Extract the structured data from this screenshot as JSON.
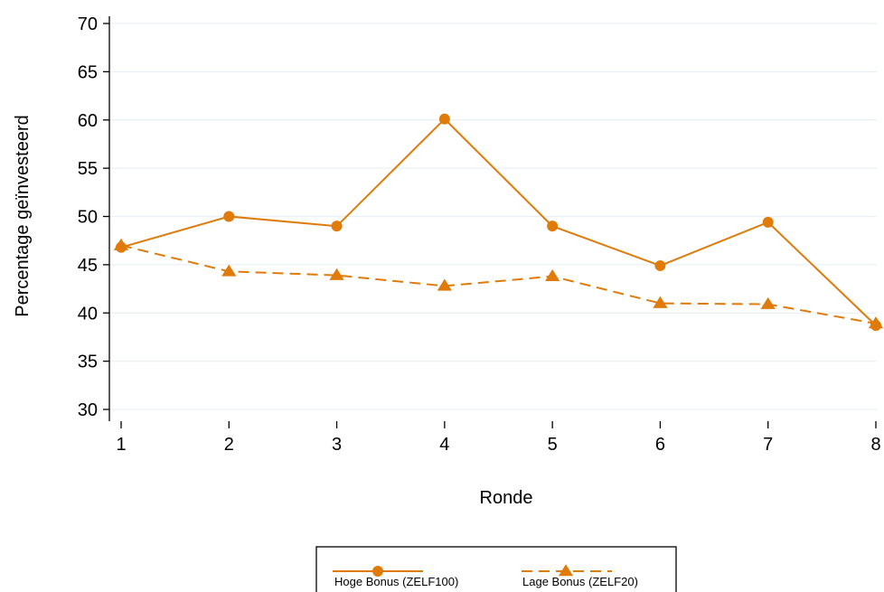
{
  "chart_data": {
    "type": "line",
    "title": "",
    "xlabel": "Ronde",
    "ylabel": "Percentage geïnvesteerd",
    "x": [
      1,
      2,
      3,
      4,
      5,
      6,
      7,
      8
    ],
    "xticks": [
      "1",
      "2",
      "3",
      "4",
      "5",
      "6",
      "7",
      "8"
    ],
    "yticks": [
      "30",
      "35",
      "40",
      "45",
      "50",
      "55",
      "60",
      "65",
      "70"
    ],
    "ytick_values": [
      30,
      35,
      40,
      45,
      50,
      55,
      60,
      65,
      70
    ],
    "xlim": [
      1,
      8
    ],
    "ylim": [
      30,
      70
    ],
    "grid": "horizontal",
    "legend_placement": "bottom-center",
    "series": [
      {
        "name": "Hoge Bonus (ZELF100)",
        "values": [
          46.8,
          50.0,
          49.0,
          60.1,
          49.0,
          44.9,
          49.4,
          38.7
        ],
        "marker": "circle",
        "line_style": "solid",
        "color": "#e07b0b"
      },
      {
        "name": "Lage Bonus (ZELF20)",
        "values": [
          47.0,
          44.3,
          43.9,
          42.8,
          43.8,
          41.0,
          40.9,
          38.9
        ],
        "marker": "triangle",
        "line_style": "dashed",
        "color": "#e07b0b"
      }
    ]
  }
}
